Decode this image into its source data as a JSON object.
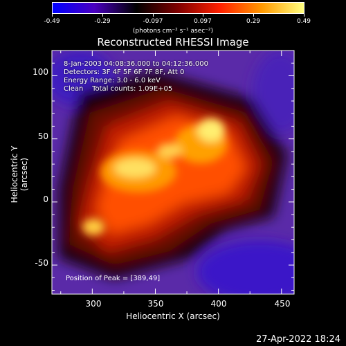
{
  "colorbar": {
    "ticks": [
      "-0.49",
      "-0.29",
      "-0.097",
      "0.097",
      "0.29",
      "0.49"
    ],
    "units": "(photons cm⁻² s⁻¹ asec⁻²)",
    "colors": [
      "#0000ff",
      "#4a00c0",
      "#000000",
      "#800000",
      "#ff2000",
      "#ff9900",
      "#ffff80"
    ]
  },
  "title": "Reconstructed RHESSI Image",
  "info": {
    "line1": "8-Jan-2003 04:08:36.000 to 04:12:36.000",
    "line2": "Detectors: 3F 4F 5F 6F 7F 8F, Att 0",
    "line3": "Energy Range: 3.0 - 6.0 keV",
    "line4": "Clean    Total counts: 1.09E+05",
    "peak": "Position of Peak = [389,49]"
  },
  "axes": {
    "xlabel": "Heliocentric X (arcsec)",
    "ylabel": "Heliocentric Y (arcsec)",
    "xticks": [
      "300",
      "350",
      "400",
      "450"
    ],
    "yticks": [
      "100",
      "50",
      "0",
      "-50"
    ],
    "xlim": [
      268,
      460
    ],
    "ylim": [
      -73,
      120
    ]
  },
  "timestamp": "27-Apr-2022 18:24"
}
